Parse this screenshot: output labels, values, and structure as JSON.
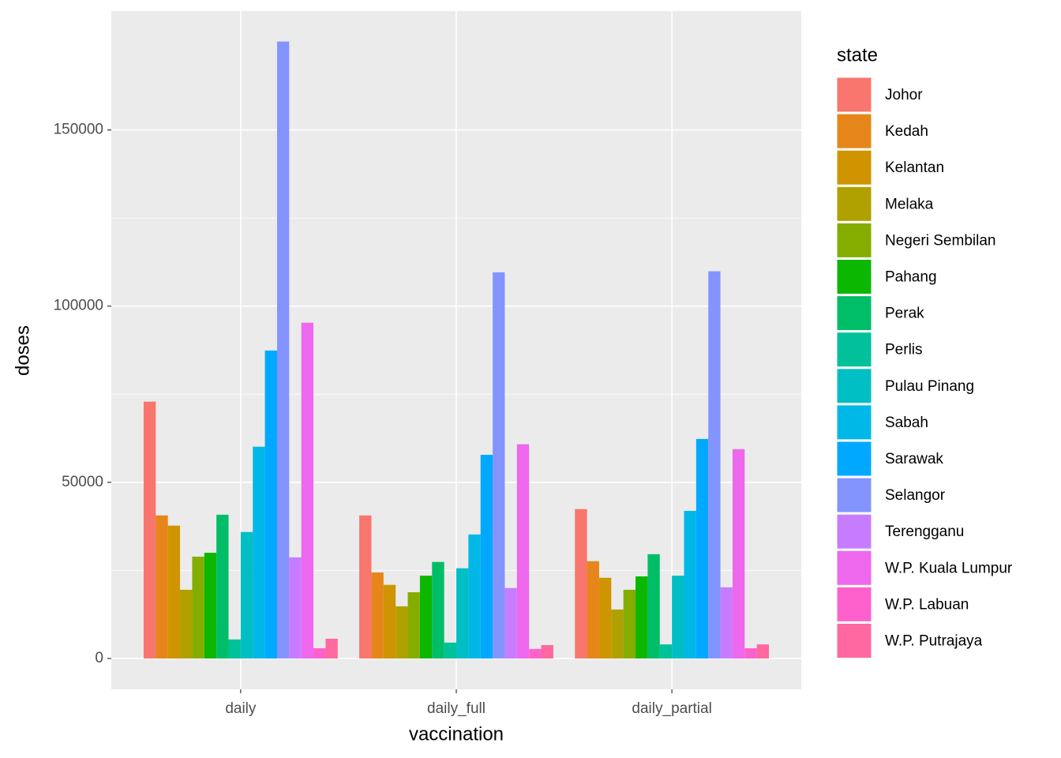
{
  "chart_data": {
    "type": "bar",
    "x_label": "vaccination",
    "y_label": "doses",
    "legend_title": "state",
    "categories": [
      "daily",
      "daily_full",
      "daily_partial"
    ],
    "ylim": [
      -8750,
      183750
    ],
    "yticks": [
      0,
      50000,
      100000,
      150000
    ],
    "grid": true,
    "series": [
      {
        "name": "Johor",
        "color": "#F8766D",
        "values": [
          72900,
          40600,
          42400
        ]
      },
      {
        "name": "Kedah",
        "color": "#E6861A",
        "values": [
          40600,
          24400,
          27600
        ]
      },
      {
        "name": "Kelantan",
        "color": "#CF9400",
        "values": [
          37700,
          20900,
          22900
        ]
      },
      {
        "name": "Melaka",
        "color": "#B0A100",
        "values": [
          19500,
          14800,
          13900
        ]
      },
      {
        "name": "Negeri Sembilan",
        "color": "#85AD00",
        "values": [
          28900,
          18800,
          19500
        ]
      },
      {
        "name": "Pahang",
        "color": "#0CB702",
        "values": [
          30000,
          23500,
          23300
        ]
      },
      {
        "name": "Perak",
        "color": "#00BE67",
        "values": [
          40800,
          27400,
          29600
        ]
      },
      {
        "name": "Perlis",
        "color": "#00C19A",
        "values": [
          5400,
          4500,
          4000
        ]
      },
      {
        "name": "Pulau Pinang",
        "color": "#00BFC4",
        "values": [
          35900,
          25600,
          23500
        ]
      },
      {
        "name": "Sabah",
        "color": "#00B8E7",
        "values": [
          60100,
          35200,
          41900
        ]
      },
      {
        "name": "Sarawak",
        "color": "#00A9FF",
        "values": [
          87400,
          57800,
          62300
        ]
      },
      {
        "name": "Selangor",
        "color": "#8494FF",
        "values": [
          175100,
          109600,
          109900
        ]
      },
      {
        "name": "Terengganu",
        "color": "#C77CFF",
        "values": [
          28700,
          20000,
          20200
        ]
      },
      {
        "name": "W.P. Kuala Lumpur",
        "color": "#ED68ED",
        "values": [
          95300,
          60800,
          59400
        ]
      },
      {
        "name": "W.P. Labuan",
        "color": "#FF61CC",
        "values": [
          2900,
          2700,
          2900
        ]
      },
      {
        "name": "W.P. Putrajaya",
        "color": "#FF68A1",
        "values": [
          5600,
          3800,
          4000
        ]
      }
    ]
  }
}
